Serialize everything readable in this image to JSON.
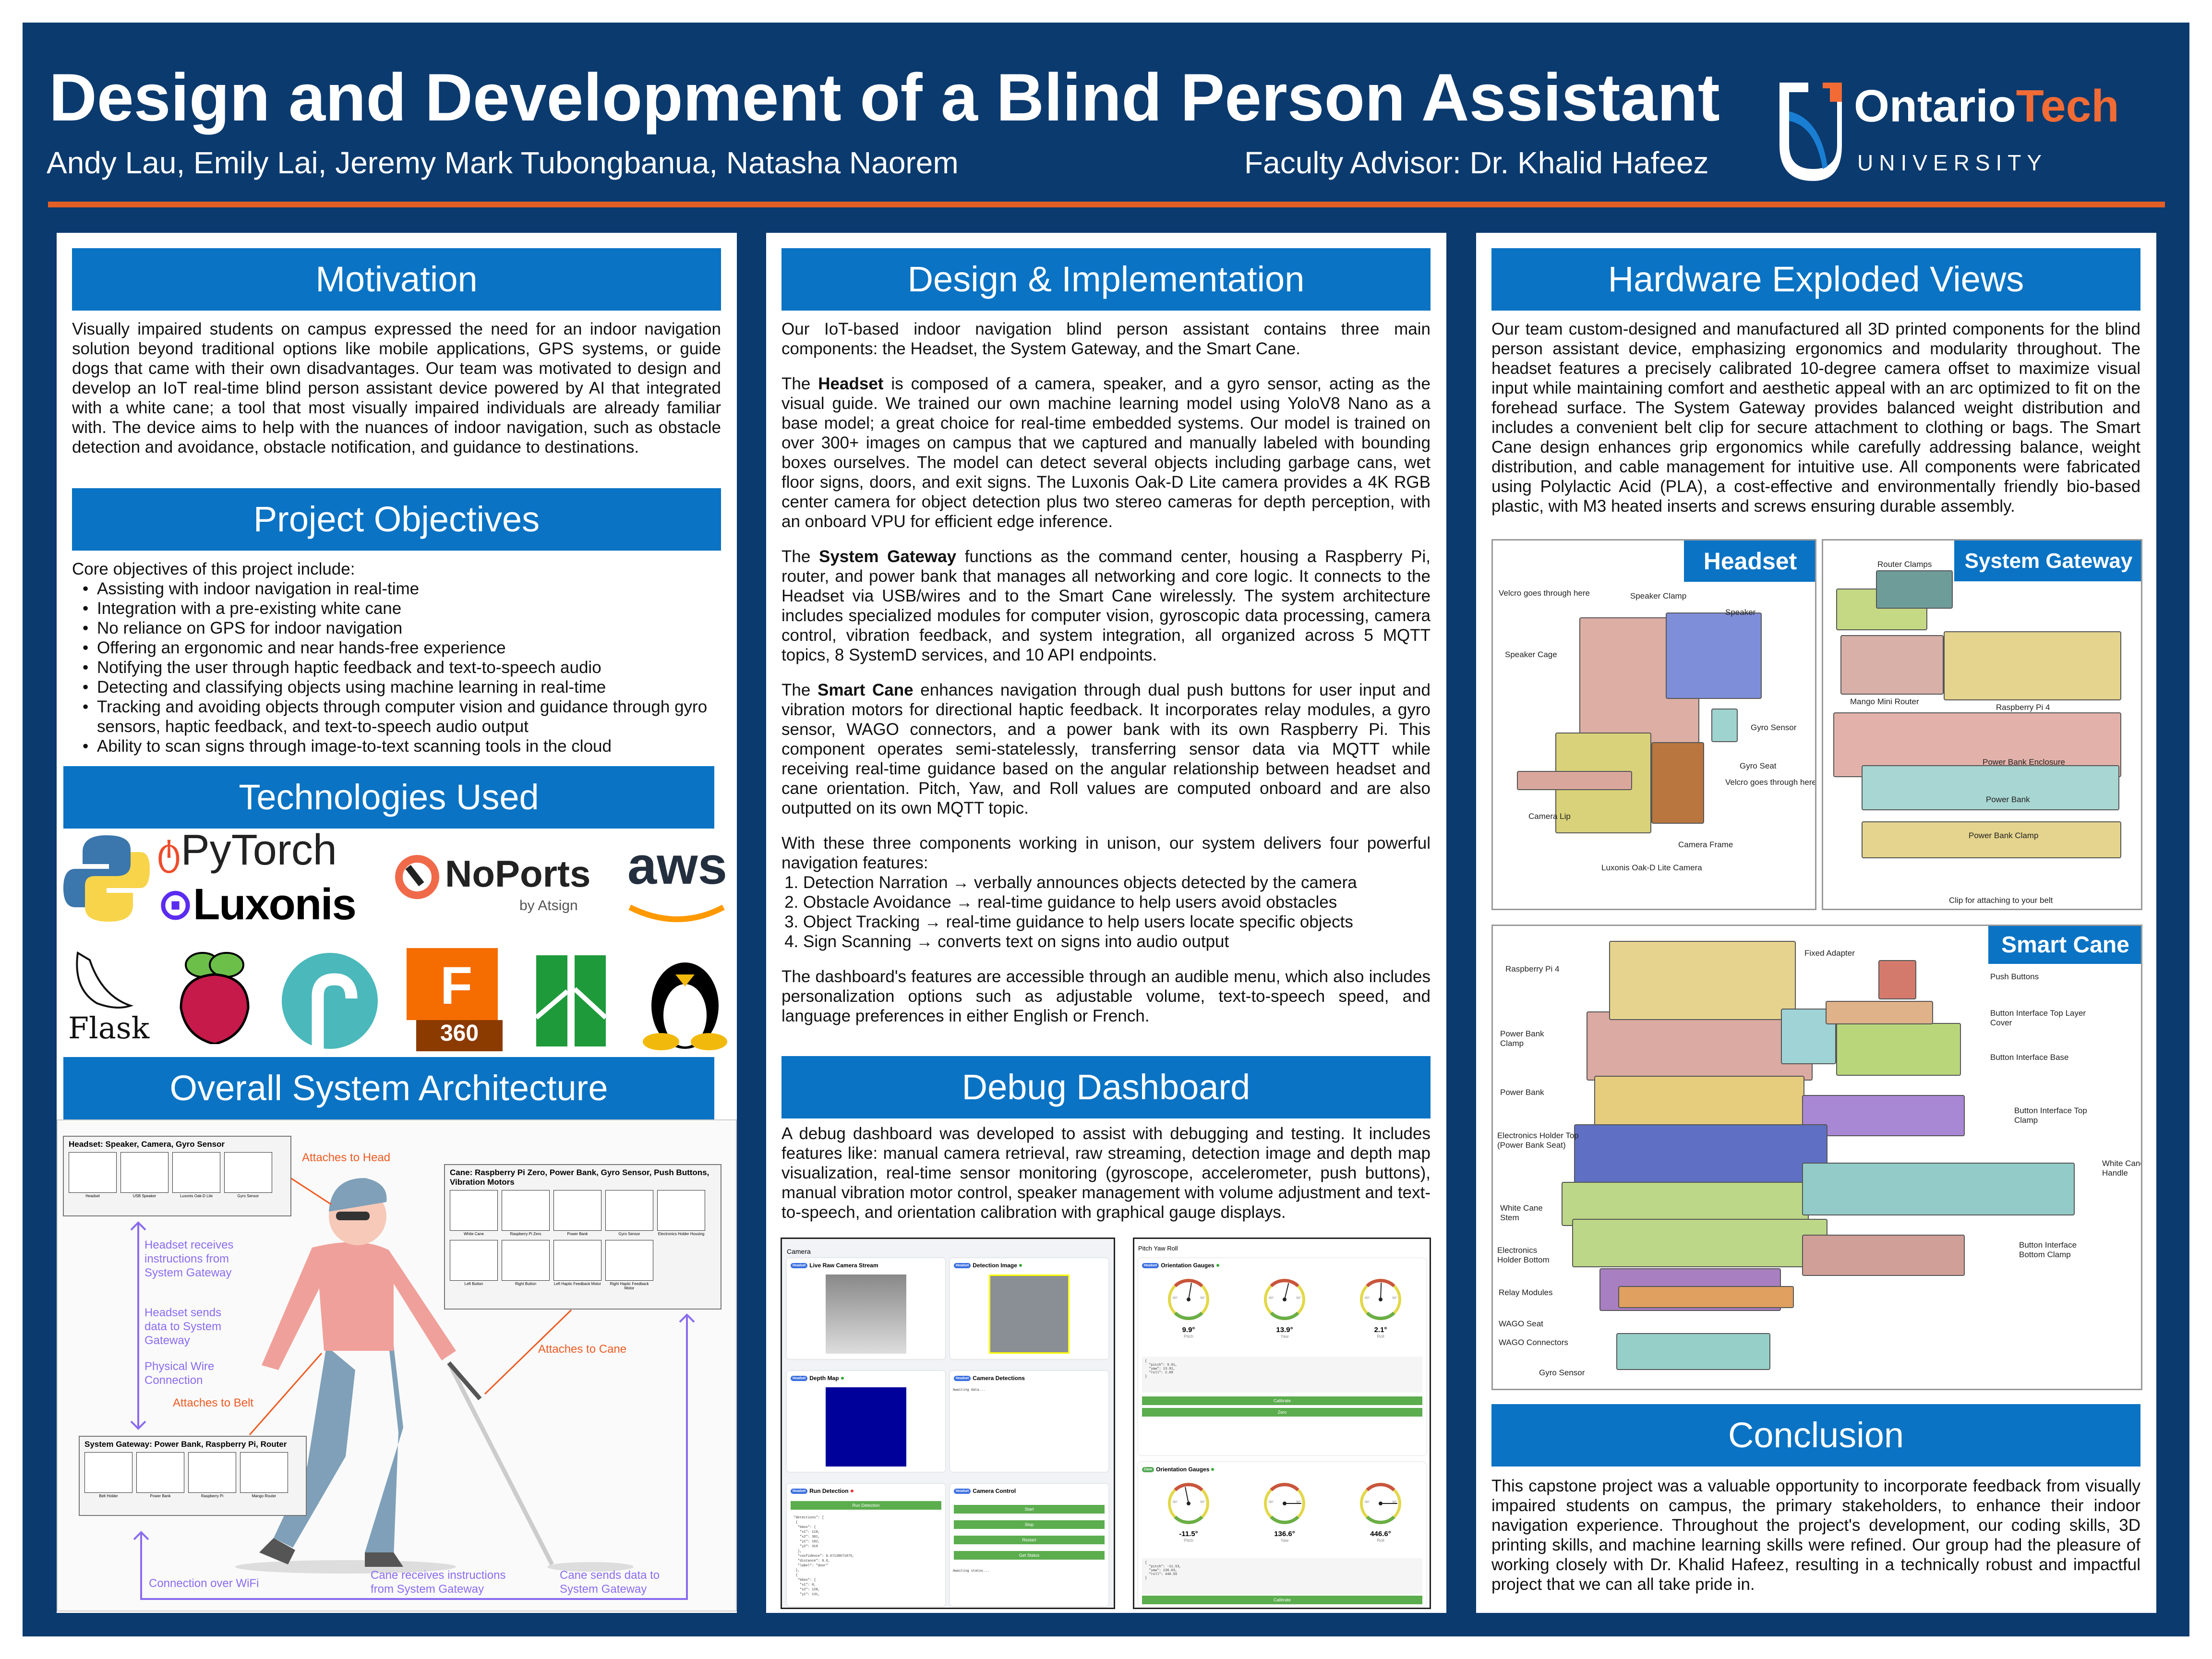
{
  "header": {
    "title": "Design and Development of a Blind Person Assistant",
    "authors": "Andy Lau, Emily Lai, Jeremy Mark Tubongbanua, Natasha Naorem",
    "advisor": "Faculty Advisor: Dr. Khalid Hafeez",
    "logo": {
      "word1": "Ontario",
      "word2": "Tech",
      "sub": "UNIVERSITY"
    },
    "colors": {
      "navy": "#0b3a6e",
      "accent_blue": "#0a73c4",
      "orange": "#e25f26"
    }
  },
  "motivation": {
    "title": "Motivation",
    "text": "Visually impaired students on campus expressed the need for an indoor navigation solution beyond traditional options like mobile applications, GPS systems, or guide dogs that came with their own disadvantages. Our team was motivated to design and develop an IoT real-time blind person assistant device powered by AI that integrated with a white cane; a tool that most visually impaired individuals are already familiar with. The device aims to help with the nuances of indoor navigation, such as obstacle detection and avoidance, obstacle notification, and guidance to destinations."
  },
  "objectives": {
    "title": "Project Objectives",
    "intro": "Core objectives of this project include:",
    "items": [
      "Assisting with indoor navigation in real-time",
      "Integration with a pre-existing white cane",
      "No reliance on GPS for indoor navigation",
      "Offering an ergonomic and near hands-free experience",
      "Notifying the user through haptic feedback and text-to-speech audio",
      "Detecting and classifying objects using machine learning in real-time",
      "Tracking and avoiding objects through computer vision and guidance through gyro sensors, haptic feedback, and text-to-speech audio output",
      "Ability to scan signs through image-to-text scanning tools in the cloud"
    ]
  },
  "technologies": {
    "title": "Technologies Used",
    "logos": {
      "pytorch": "PyTorch",
      "luxonis": "Luxonis",
      "noports": "NoPorts",
      "noports_sub": "by Atsign",
      "aws": "aws",
      "flask": "Flask",
      "fusion_letter": "F",
      "fusion_num": "360"
    }
  },
  "architecture": {
    "title": "Overall System Architecture",
    "headset_box": {
      "title": "Headset: Speaker, Camera, Gyro Sensor",
      "items": [
        "Headset",
        "USB Speaker",
        "Luxonis Oak-D Lite",
        "Gyro Sensor"
      ]
    },
    "cane_box": {
      "title": "Cane: Raspberry Pi Zero, Power Bank, Gyro Sensor, Push Buttons, Vibration Motors",
      "items": [
        "White Cane",
        "Raspberry Pi Zero",
        "Power Bank",
        "Gyro Sensor",
        "Electronics Holder Housing",
        "Left Button",
        "Right Button",
        "Left Haptic Feedback Motor",
        "Right Haptic Feedback Motor"
      ]
    },
    "gateway_box": {
      "title": "System Gateway: Power Bank, Raspberry Pi, Router",
      "items": [
        "Belt Holder",
        "Power Bank",
        "Raspberry Pi",
        "Mango Router"
      ]
    },
    "attach_labels": [
      "Attaches to Head",
      "Attaches to Belt",
      "Attaches to Cane"
    ],
    "flow_labels": [
      "Headset receives instructions from System Gateway",
      "Headset sends data to System Gateway",
      "Physical Wire Connection",
      "Connection over WiFi",
      "Cane receives instructions from System Gateway",
      "Cane sends data to System Gateway"
    ]
  },
  "design": {
    "title": "Design & Implementation",
    "intro": "Our IoT-based indoor navigation blind person assistant contains three main components: the Headset, the System Gateway, and the Smart Cane.",
    "paragraphs": [
      {
        "pre": "The ",
        "bold": "Headset",
        "post": " is composed of a camera, speaker, and a gyro sensor, acting as the visual guide. We trained our own machine learning model using YoloV8 Nano as a base model; a great choice for real-time embedded systems. Our model is trained on over 300+ images on campus that we captured and manually labeled with bounding boxes ourselves. The model can detect several objects including garbage cans, wet floor signs, doors, and exit signs. The Luxonis Oak-D Lite camera provides a 4K RGB center camera for object detection plus two stereo cameras for depth perception, with an onboard VPU for efficient edge inference."
      },
      {
        "pre": "The ",
        "bold": "System Gateway",
        "post": " functions as the command center, housing a Raspberry Pi, router, and power bank that manages all networking and core logic. It connects to the Headset via USB/wires and to the Smart Cane wirelessly. The system architecture includes specialized modules for computer vision, gyroscopic data processing, camera control, vibration feedback, and system integration, all organized across 5 MQTT topics, 8 SystemD services, and 10 API endpoints."
      },
      {
        "pre": "The ",
        "bold": "Smart Cane",
        "post": " enhances navigation through dual push buttons for user input and vibration motors for directional haptic feedback. It incorporates relay modules, a gyro sensor, WAGO connectors, and a power bank with its own Raspberry Pi. This component operates semi-statelessly, transferring sensor data via MQTT while receiving real-time guidance based on the angular relationship between headset and cane orientation. Pitch, Yaw, and Roll values are computed onboard and are also outputted on its own MQTT topic."
      }
    ],
    "features_intro": "With these three components working in unison, our system delivers four powerful navigation features:",
    "features": [
      "Detection Narration → verbally announces objects detected by the camera",
      "Obstacle Avoidance → real-time guidance to help users avoid obstacles",
      "Object Tracking → real-time guidance to help users locate specific objects",
      "Sign Scanning → converts text on signs into audio output"
    ],
    "outro": "The dashboard's features are accessible through an audible menu, which also includes personalization options such as adjustable volume, text-to-speech speed, and language preferences in either English or French."
  },
  "debug": {
    "title": "Debug Dashboard",
    "text": "A debug dashboard was developed to assist with debugging and testing. It includes features like: manual camera retrieval, raw streaming, detection image and depth map visualization, real-time sensor monitoring (gyroscope, accelerometer, push buttons), manual vibration motor control, speaker management with volume adjustment and text-to-speech, and orientation calibration with graphical gauge displays.",
    "camera": {
      "title": "Camera",
      "badge": "Headset",
      "cards": [
        "Live Raw Camera Stream",
        "Detection Image",
        "Depth Map",
        "Camera Detections",
        "Run Detection",
        "Camera Control"
      ],
      "awaiting_data": "Awaiting data...",
      "awaiting_status": "Awaiting status...",
      "run_button": "Run Detection",
      "control_buttons": [
        "Start",
        "Stop",
        "Restart",
        "Get Status"
      ],
      "detections_json": "  \"detections\": [\n   {\n    \"bbox\": {\n     \"x1\": 110,\n     \"x2\": 301,\n     \"y1\": 102,\n     \"y2\": 319\n    },\n    \"confidence\": 0.67138671875,\n    \"distance\": 0.6,\n    \"label\": \"door\"\n   },\n   {\n    \"bbox\": {\n     \"x1\": 0,\n     \"x2\": 128,\n     \"y1\": 131,"
    },
    "gauges": {
      "title": "Pitch Yaw Roll",
      "card_title": "Orientation Gauges",
      "tick_left": "-90°",
      "tick_right": "90°",
      "headset": {
        "badge": "Headset",
        "values": [
          {
            "label": "Pitch",
            "value": 9.9,
            "text": "9.9°"
          },
          {
            "label": "Yaw",
            "value": 13.9,
            "text": "13.9°"
          },
          {
            "label": "Roll",
            "value": 2.1,
            "text": "2.1°"
          }
        ],
        "json": "{\n  \"pitch\": 9.91,\n  \"yaw\": 13.91,\n  \"roll\": 2.09\n}",
        "buttons": [
          "Calibrate",
          "Zero"
        ]
      },
      "cane": {
        "badge": "Cane",
        "values": [
          {
            "label": "Pitch",
            "value": -11.5,
            "text": "-11.5°"
          },
          {
            "label": "Yaw",
            "value": 136.6,
            "text": "136.6°"
          },
          {
            "label": "Roll",
            "value": 446.6,
            "text": "446.6°"
          }
        ],
        "json": "{\n  \"pitch\": -11.53,\n  \"yaw\": 136.63,\n  \"roll\": 446.55\n}",
        "buttons": [
          "Calibrate"
        ]
      }
    }
  },
  "hardware": {
    "title": "Hardware Exploded Views",
    "text": "Our team custom-designed and manufactured all 3D printed components for the blind person assistant device, emphasizing ergonomics and modularity throughout. The headset features a precisely calibrated 10-degree camera offset to maximize visual input while maintaining comfort and aesthetic appeal with an arc optimized to fit on the forehead surface. The System Gateway provides balanced weight distribution and includes a convenient belt clip for secure attachment to clothing or bags. The Smart Cane design enhances grip ergonomics while carefully addressing balance, weight distribution, and cable management for intuitive use. All components were fabricated using Polylactic Acid (PLA), a cost-effective and environmentally friendly bio-based plastic, with M3 heated inserts and screws ensuring durable assembly.",
    "headset": {
      "title": "Headset",
      "labels": [
        "Velcro goes through here",
        "Speaker Clamp",
        "Speaker",
        "Speaker Cage",
        "Gyro Sensor",
        "Gyro Seat",
        "Velcro goes through here",
        "Camera Lip",
        "Camera Frame",
        "Luxonis Oak-D Lite Camera"
      ]
    },
    "gateway": {
      "title": "System Gateway",
      "labels": [
        "Router Clamps",
        "Mango Mini Router",
        "Raspberry Pi 4",
        "Power Bank Enclosure",
        "Power Bank",
        "Power Bank Clamp",
        "Clip for attaching to your belt"
      ]
    },
    "cane": {
      "title": "Smart Cane",
      "labels": [
        "Raspberry Pi 4",
        "Fixed Adapter",
        "Push Buttons",
        "Button Interface Top Layer Cover",
        "Button Interface Base",
        "Power Bank Clamp",
        "Power Bank",
        "Button Interface Top Clamp",
        "Electronics Holder Top (Power Bank Seat)",
        "White Cane Handle",
        "White Cane Stem",
        "Electronics Holder Bottom",
        "Button Interface Bottom Clamp",
        "Relay Modules",
        "WAGO Seat",
        "WAGO Connectors",
        "Gyro Sensor"
      ]
    }
  },
  "conclusion": {
    "title": "Conclusion",
    "text": "This capstone project was a valuable opportunity to incorporate feedback from visually impaired students on campus, the primary stakeholders, to enhance their indoor navigation experience. Throughout the project's development, our coding skills, 3D printing skills, and machine learning skills were refined. Our group had the pleasure of working closely with Dr. Khalid Hafeez, resulting in a technically robust and impactful project that we can all take pride in."
  }
}
